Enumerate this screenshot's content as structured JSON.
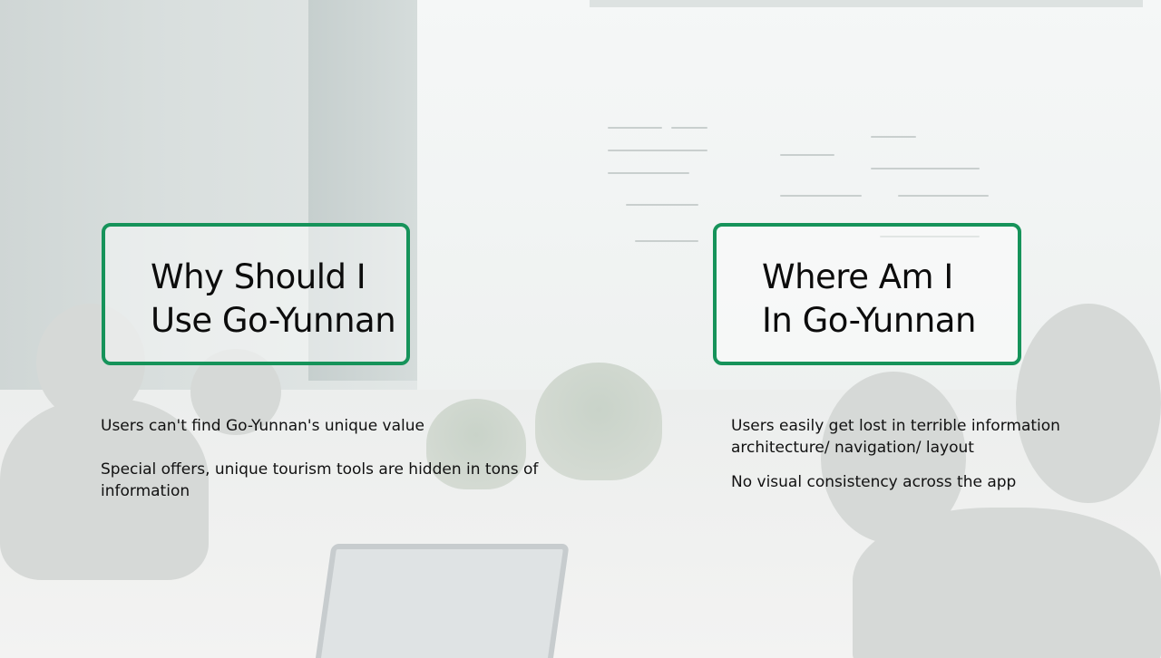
{
  "left_section": {
    "title_line1": "Why Should I",
    "title_line2": "Use Go-Yunnan",
    "points": [
      "Users can't find Go-Yunnan's unique value",
      "Special offers, unique tourism tools are hidden in tons of information"
    ]
  },
  "right_section": {
    "title_line1": "Where Am I",
    "title_line2": "In Go-Yunnan",
    "points": [
      "Users easily get lost in terrible information architecture/ navigation/ layout",
      "No visual consistency across the app"
    ]
  },
  "colors": {
    "accent_border": "#16935a",
    "text": "#111111"
  }
}
